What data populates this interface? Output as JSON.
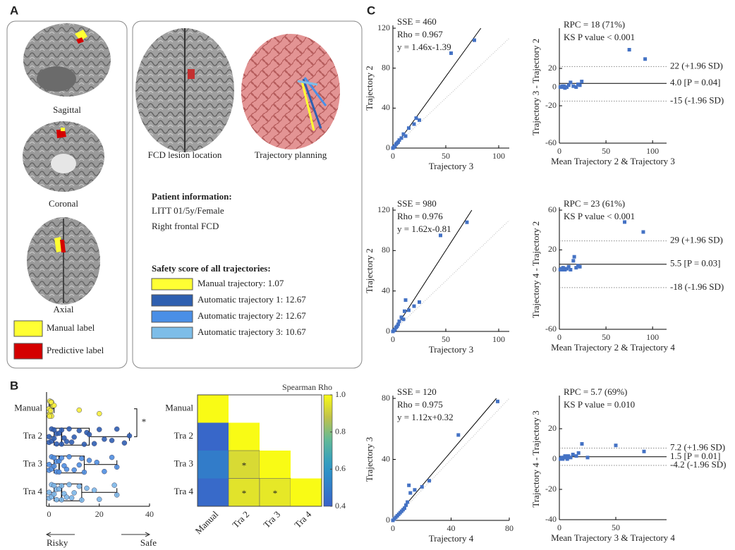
{
  "panel_letters": [
    "A",
    "B",
    "C"
  ],
  "panel_a": {
    "views": [
      "Sagittal",
      "Coronal",
      "Axial"
    ],
    "legend": [
      {
        "label": "Manual label",
        "color": "#ffff33"
      },
      {
        "label": "Predictive label",
        "color": "#d40000"
      }
    ],
    "captions": [
      "FCD lesion location",
      "Trajectory planning"
    ],
    "patient_title": "Patient information:",
    "patient_lines": [
      "LITT 01/5y/Female",
      "Right frontal FCD"
    ],
    "safety_title": "Safety score of all trajectories:",
    "trajectories": [
      {
        "label": "Manual trajectory: 1.07",
        "color": "#ffff33"
      },
      {
        "label": "Automatic trajectory 1: 12.67",
        "color": "#2e5fb0"
      },
      {
        "label": "Automatic trajectory 2: 12.67",
        "color": "#4a8fe6"
      },
      {
        "label": "Automatic trajectory 3: 10.67",
        "color": "#7dbde8"
      }
    ]
  },
  "chart_data": [
    {
      "type": "box",
      "categories": [
        "Manual",
        "Tra 2",
        "Tra 3",
        "Tra 4"
      ],
      "colors": [
        "#f7ef3c",
        "#2f5fb3",
        "#4f8fe0",
        "#7db8e8"
      ],
      "xlim": [
        -1,
        40
      ],
      "xticks": [
        0,
        20,
        40
      ],
      "boxes": [
        {
          "q1": 0,
          "median": 0.5,
          "q3": 1,
          "whisker_low": 0,
          "whisker_high": 2,
          "points": [
            0,
            0,
            0.3,
            0.5,
            0.6,
            1,
            1,
            1.5,
            2,
            0.2,
            0.8,
            12,
            20
          ]
        },
        {
          "q1": 2,
          "median": 5,
          "q3": 16,
          "whisker_low": 0,
          "whisker_high": 32,
          "points": [
            0,
            0,
            1,
            1,
            2,
            2,
            3,
            3,
            4,
            5,
            5,
            6,
            7,
            8,
            9,
            10,
            12,
            14,
            15,
            16,
            18,
            20,
            22,
            25,
            27,
            30,
            32
          ]
        },
        {
          "q1": 2,
          "median": 4,
          "q3": 14,
          "whisker_low": 0,
          "whisker_high": 27,
          "points": [
            0,
            0,
            1,
            1,
            2,
            2,
            3,
            3,
            4,
            4,
            5,
            6,
            7,
            8,
            10,
            12,
            13,
            14,
            16,
            19,
            22,
            25,
            27
          ]
        },
        {
          "q1": 2,
          "median": 5,
          "q3": 13,
          "whisker_low": 0,
          "whisker_high": 27,
          "points": [
            0,
            0,
            1,
            1,
            2,
            2,
            3,
            3,
            4,
            5,
            5,
            6,
            7,
            8,
            9,
            10,
            12,
            13,
            15,
            18,
            20,
            26,
            27
          ]
        }
      ],
      "significance": "*",
      "annotations": [
        "Risky",
        "Safe"
      ]
    },
    {
      "type": "heatmap",
      "categories": [
        "Manual",
        "Tra 2",
        "Tra 3",
        "Tra 4"
      ],
      "values": [
        [
          1,
          null,
          null,
          null
        ],
        [
          0.42,
          1,
          null,
          null
        ],
        [
          0.5,
          0.93,
          1,
          null
        ],
        [
          0.43,
          0.95,
          0.96,
          1
        ]
      ],
      "significance": [
        [
          null,
          null,
          null,
          null
        ],
        [
          null,
          null,
          null,
          null
        ],
        [
          null,
          "*",
          null,
          null
        ],
        [
          null,
          "*",
          "*",
          null
        ]
      ],
      "colorbar_title": "Spearman Rho",
      "clim": [
        0.4,
        1
      ],
      "cticks": [
        0.4,
        0.6,
        0.8,
        {
          "value": 1,
          "label": "1.0"
        }
      ]
    },
    {
      "type": "scatter",
      "x": [
        0,
        1,
        2,
        3,
        4,
        5,
        6,
        8,
        10,
        12,
        15,
        20,
        22,
        25,
        55,
        77
      ],
      "values": [
        0,
        1,
        2,
        4,
        5,
        6,
        8,
        10,
        14,
        12,
        20,
        24,
        30,
        28,
        95,
        108
      ],
      "color": "#4472c4",
      "xlim": [
        0,
        110
      ],
      "ylim": [
        0,
        120
      ],
      "xticks": [
        0,
        50,
        100
      ],
      "yticks": [
        0,
        40,
        80,
        120
      ],
      "xlabel": "Trajectory 3",
      "ylabel": "Trajectory 2",
      "annotations": [
        "SSE = 460",
        "Rho = 0.967",
        "y = 1.46x-1.39"
      ],
      "fit": {
        "slope": 1.46,
        "intercept": -1.39
      }
    },
    {
      "type": "bland_altman",
      "x": [
        1,
        2,
        3,
        4,
        5,
        6,
        8,
        10,
        12,
        15,
        18,
        20,
        22,
        24,
        75,
        92
      ],
      "values": [
        0,
        0,
        1,
        0,
        1,
        -1,
        0,
        2,
        5,
        1,
        0,
        3,
        2,
        6,
        40,
        30
      ],
      "color": "#4472c4",
      "xlim": [
        0,
        115
      ],
      "ylim": [
        -60,
        60
      ],
      "xticks": [
        0,
        50,
        100
      ],
      "yticks": [
        -60,
        -20,
        0,
        20
      ],
      "xlabel": "Mean Trajectory 2 & Trajectory 3",
      "ylabel": "Trajectory 3 - Trajectory 2",
      "annotations": [
        "RPC = 18 (71%)",
        "KS P value < 0.001"
      ],
      "lines": [
        {
          "value": 22,
          "label": "22 (+1.96 SD)",
          "dashed": true
        },
        {
          "value": 4,
          "label": "4.0 [P = 0.04]",
          "dashed": false
        },
        {
          "value": -15,
          "label": "-15 (-1.96 SD)",
          "dashed": true
        }
      ]
    },
    {
      "type": "scatter",
      "x": [
        0,
        1,
        2,
        3,
        4,
        5,
        6,
        8,
        10,
        11,
        12,
        15,
        20,
        25,
        45,
        70
      ],
      "values": [
        0,
        1,
        2,
        4,
        5,
        7,
        10,
        14,
        12,
        20,
        31,
        21,
        25,
        29,
        95,
        108
      ],
      "color": "#4472c4",
      "xlim": [
        0,
        110
      ],
      "ylim": [
        0,
        120
      ],
      "xticks": [
        0,
        50,
        100
      ],
      "yticks": [
        0,
        40,
        80,
        120
      ],
      "xlabel": "Trajectory 3",
      "ylabel": "Trajectory 2",
      "annotations": [
        "SSE = 980",
        "Rho = 0.976",
        "y = 1.62x-0.81"
      ],
      "fit": {
        "slope": 1.62,
        "intercept": -0.81
      }
    },
    {
      "type": "bland_altman",
      "x": [
        1,
        2,
        3,
        4,
        5,
        6,
        8,
        10,
        12,
        15,
        16,
        18,
        20,
        22,
        70,
        90
      ],
      "values": [
        0,
        1,
        0,
        2,
        1,
        0,
        1,
        3,
        0,
        9,
        13,
        2,
        4,
        3,
        48,
        38
      ],
      "color": "#4472c4",
      "xlim": [
        0,
        115
      ],
      "ylim": [
        -60,
        60
      ],
      "xticks": [
        0,
        50,
        100
      ],
      "yticks": [
        -60,
        0,
        20,
        60
      ],
      "xlabel": "Mean Trajectory 2 & Trajectory 4",
      "ylabel": "Trajectory 4 - Trajectory 2",
      "annotations": [
        "RPC = 23 (61%)",
        "KS P value < 0.001"
      ],
      "lines": [
        {
          "value": 29,
          "label": "29 (+1.96 SD)",
          "dashed": true
        },
        {
          "value": 5.5,
          "label": "5.5 [P = 0.03]",
          "dashed": false
        },
        {
          "value": -18,
          "label": "-18 (-1.96 SD)",
          "dashed": true
        }
      ]
    },
    {
      "type": "scatter",
      "x": [
        0,
        1,
        2,
        3,
        4,
        5,
        6,
        7,
        8,
        9,
        10,
        11,
        12,
        15,
        20,
        25,
        45,
        72
      ],
      "values": [
        0,
        1,
        2,
        3,
        4,
        5,
        6,
        7,
        8,
        10,
        12,
        23,
        18,
        20,
        22,
        26,
        56,
        78
      ],
      "color": "#4472c4",
      "xlim": [
        0,
        80
      ],
      "ylim": [
        0,
        80
      ],
      "xticks": [
        0,
        40,
        80
      ],
      "yticks": [
        0,
        40,
        80
      ],
      "xlabel": "Trajectory 4",
      "ylabel": "Trajectory 3",
      "annotations": [
        "SSE = 120",
        "Rho = 0.975",
        "y = 1.12x+0.32"
      ],
      "fit": {
        "slope": 1.12,
        "intercept": 0.32
      }
    },
    {
      "type": "bland_altman",
      "x": [
        1,
        2,
        3,
        4,
        5,
        6,
        7,
        8,
        10,
        12,
        15,
        17,
        20,
        25,
        50,
        75
      ],
      "values": [
        0,
        1,
        0,
        1,
        2,
        1,
        0,
        2,
        1,
        3,
        2,
        4,
        10,
        1,
        9,
        5
      ],
      "color": "#4472c4",
      "xlim": [
        0,
        95
      ],
      "ylim": [
        -40,
        40
      ],
      "xticks": [
        0,
        50
      ],
      "yticks": [
        -40,
        -20,
        0,
        20
      ],
      "xlabel": "Mean Trajectory 3 & Trajectory 4",
      "ylabel": "Trajectory 4 - Trajectory 3",
      "annotations": [
        "RPC = 5.7 (69%)",
        "KS P value = 0.010"
      ],
      "lines": [
        {
          "value": 7.2,
          "label": "7.2 (+1.96 SD)",
          "dashed": true
        },
        {
          "value": 1.5,
          "label": "1.5 [P = 0.01]",
          "dashed": false
        },
        {
          "value": -4.2,
          "label": "-4.2 (-1.96 SD)",
          "dashed": true
        }
      ]
    }
  ]
}
